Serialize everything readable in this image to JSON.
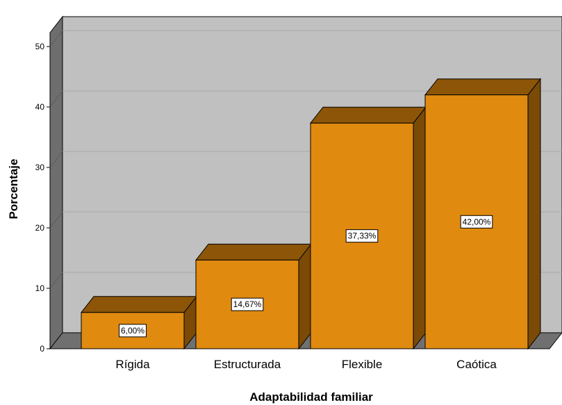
{
  "chart_data": {
    "type": "bar",
    "categories": [
      "Rígida",
      "Estructurada",
      "Flexible",
      "Caótica"
    ],
    "values": [
      6.0,
      14.67,
      37.33,
      42.0
    ],
    "data_labels": [
      "6,00%",
      "14,67%",
      "37,33%",
      "42,00%"
    ],
    "title": "",
    "xlabel": "Adaptabilidad familiar",
    "ylabel": "Porcentaje",
    "ylim": [
      0,
      50
    ],
    "yticks": [
      0,
      10,
      20,
      30,
      40,
      50
    ],
    "grid": true,
    "style": "3d",
    "colors": {
      "bar_front": "#E08A10",
      "bar_top": "#8C5508",
      "bar_side": "#7A4A06",
      "back_wall": "#C0C0C0",
      "side_wall": "#6E6E6E",
      "floor": "#707070",
      "gridline": "#A8A8A8"
    }
  }
}
